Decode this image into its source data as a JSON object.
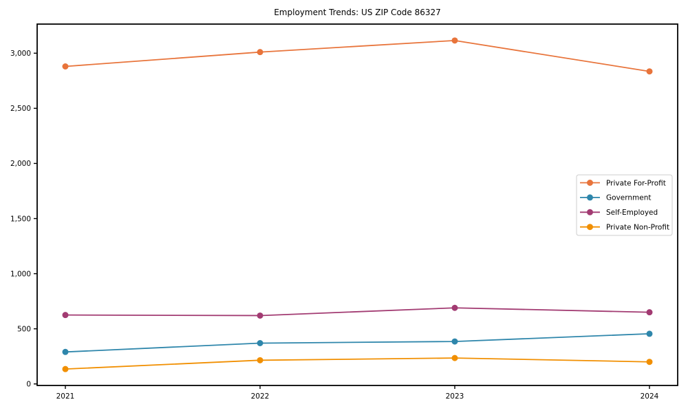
{
  "window": {
    "background": "#ffffff"
  },
  "chart_data": {
    "type": "line",
    "title": "Employment Trends: US ZIP Code 86327",
    "xlabel": "",
    "ylabel": "",
    "grid": false,
    "categories": [
      "2021",
      "2022",
      "2023",
      "2024"
    ],
    "series": [
      {
        "name": "Private For-Profit",
        "color": "#E8743B",
        "values": [
          2880,
          3010,
          3115,
          2835
        ]
      },
      {
        "name": "Government",
        "color": "#2E86AB",
        "values": [
          290,
          370,
          385,
          455
        ]
      },
      {
        "name": "Self-Employed",
        "color": "#A23B72",
        "values": [
          625,
          620,
          690,
          650
        ]
      },
      {
        "name": "Private Non-Profit",
        "color": "#F18F01",
        "values": [
          135,
          215,
          235,
          200
        ]
      }
    ],
    "yticks": {
      "values": [
        0,
        500,
        1000,
        1500,
        2000,
        2500,
        3000
      ],
      "labels": [
        "0",
        "500",
        "1,000",
        "1,500",
        "2,000",
        "2,500",
        "3,000"
      ]
    },
    "ylim": [
      -14,
      3264
    ],
    "legend": {
      "position": "center right",
      "entries": [
        "Private For-Profit",
        "Government",
        "Self-Employed",
        "Private Non-Profit"
      ],
      "border_color": "#cccccc",
      "background": "#ffffff"
    },
    "marker": "circle",
    "frame_color": "#000000",
    "tick_color": "#000000",
    "text_color": "#000000"
  }
}
